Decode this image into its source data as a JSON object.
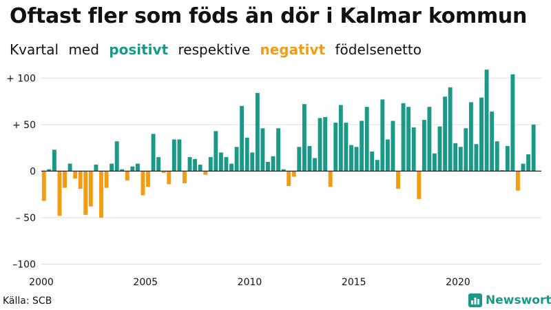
{
  "title": "Oftast fler som föds än dör i Kalmar kommun",
  "subtitle": {
    "word1": "Kvartal",
    "word2": "med",
    "positive": "positivt",
    "word3": "respektive",
    "negative": "negativt",
    "word4": "födelsenetto"
  },
  "source": "Källa: SCB",
  "brand": "Newsworthy",
  "colors": {
    "positive": "#1a9988",
    "negative": "#f39c12",
    "grid": "#dddddd",
    "zero": "#222222"
  },
  "chart_data": {
    "type": "bar",
    "title": "Oftast fler som föds än dör i Kalmar kommun",
    "xlabel": "",
    "ylabel": "",
    "ylim": [
      -110,
      115
    ],
    "grid": true,
    "x_ticks": [
      {
        "value": 2000,
        "label": "2000"
      },
      {
        "value": 2005,
        "label": "2005"
      },
      {
        "value": 2010,
        "label": "2010"
      },
      {
        "value": 2015,
        "label": "2015"
      },
      {
        "value": 2020,
        "label": "2020"
      }
    ],
    "y_ticks": [
      {
        "value": 100,
        "label": "+ 100"
      },
      {
        "value": 50,
        "label": "+  50"
      },
      {
        "value": 0,
        "label": "0"
      },
      {
        "value": -50,
        "label": "– 50"
      },
      {
        "value": -100,
        "label": "–100"
      }
    ],
    "x_start": 2000.0,
    "x_end": 2024.0,
    "quarters_per_year": 4,
    "values": [
      -32,
      2,
      23,
      -48,
      -18,
      8,
      -8,
      -19,
      -47,
      -38,
      7,
      -50,
      -18,
      8,
      32,
      2,
      -10,
      5,
      8,
      -26,
      -17,
      40,
      15,
      -2,
      -14,
      34,
      34,
      -13,
      15,
      13,
      7,
      -4,
      15,
      43,
      20,
      15,
      8,
      26,
      70,
      36,
      20,
      84,
      46,
      10,
      16,
      46,
      2,
      -16,
      -6,
      26,
      72,
      27,
      14,
      57,
      58,
      -17,
      52,
      71,
      52,
      28,
      26,
      54,
      69,
      21,
      12,
      77,
      34,
      54,
      -19,
      73,
      69,
      47,
      -30,
      55,
      69,
      19,
      48,
      80,
      90,
      30,
      26,
      46,
      74,
      29,
      79,
      109,
      64,
      32,
      1,
      27,
      104,
      -21,
      8,
      18,
      50
    ]
  }
}
